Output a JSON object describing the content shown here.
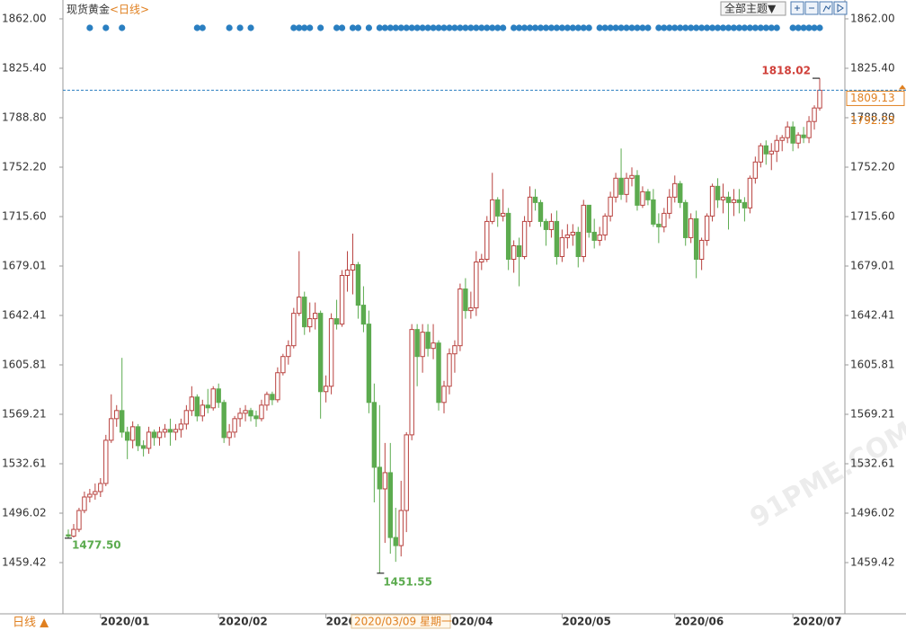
{
  "chart_data": {
    "type": "candlestick",
    "title": "现货黄金",
    "period": "<日线>",
    "theme_button": "全部主题▼",
    "period_switch": "日线 ▲",
    "cursor_date": "2020/03/09 星期一",
    "watermark": "91PME.COM",
    "ylim": [
      1421.5,
      1869.3
    ],
    "yticks": [
      {
        "value": 1862,
        "label": "1862.00"
      },
      {
        "value": 1825.4,
        "label": "1825.40"
      },
      {
        "value": 1788.8,
        "label": "1788.80"
      },
      {
        "value": 1752.2,
        "label": "1752.20"
      },
      {
        "value": 1715.6,
        "label": "1715.60"
      },
      1679.01,
      1642.41,
      1605.81,
      1569.21,
      1532.61,
      1496.02,
      1459.42
    ],
    "grid": false,
    "up_color": "#b8423f",
    "down_color": "#5cab4f",
    "signal_color": "#2a7fc1",
    "ref_price": 1792.23,
    "low_label": "1477.50",
    "categories": [
      null,
      null,
      null,
      null,
      null,
      null,
      "2020/01",
      null,
      null,
      null,
      null,
      null,
      null,
      null,
      null,
      null,
      null,
      null,
      null,
      null,
      null,
      null,
      null,
      null,
      null,
      null,
      null,
      null,
      "2020/02",
      null,
      null,
      null,
      null,
      null,
      null,
      null,
      null,
      null,
      null,
      null,
      null,
      null,
      null,
      null,
      null,
      null,
      null,
      null,
      "2020/03",
      null,
      null,
      null,
      null,
      null,
      null,
      null,
      null,
      null,
      null,
      null,
      null,
      null,
      null,
      null,
      null,
      null,
      null,
      null,
      null,
      null,
      "2020/04",
      null,
      null,
      null,
      null,
      null,
      null,
      null,
      null,
      null,
      null,
      null,
      null,
      null,
      null,
      null,
      null,
      null,
      null,
      null,
      null,
      null,
      "2020/05",
      null,
      null,
      null,
      null,
      null,
      null,
      null,
      null,
      null,
      null,
      null,
      null,
      null,
      null,
      null,
      null,
      null,
      null,
      null,
      null,
      "2020/06",
      null,
      null,
      null,
      null,
      null,
      null,
      null,
      null,
      null,
      null,
      null,
      null,
      null,
      null,
      null,
      null,
      null,
      null,
      null,
      null,
      null,
      "2020/07",
      null,
      null,
      null,
      null,
      null
    ],
    "ohlc": [
      [
        1480,
        1484,
        1477.5,
        1479
      ],
      [
        1479,
        1488,
        1478,
        1484
      ],
      [
        1484,
        1500,
        1482,
        1498
      ],
      [
        1498,
        1512,
        1496,
        1508
      ],
      [
        1508,
        1514,
        1504,
        1510
      ],
      [
        1510,
        1518,
        1506,
        1512
      ],
      [
        1512,
        1522,
        1508,
        1518
      ],
      [
        1518,
        1554,
        1516,
        1550
      ],
      [
        1550,
        1584,
        1548,
        1566
      ],
      [
        1566,
        1576,
        1560,
        1572
      ],
      [
        1572,
        1611,
        1552,
        1556
      ],
      [
        1556,
        1560,
        1536,
        1550
      ],
      [
        1550,
        1564,
        1544,
        1560
      ],
      [
        1560,
        1562,
        1542,
        1546
      ],
      [
        1546,
        1550,
        1538,
        1544
      ],
      [
        1544,
        1560,
        1540,
        1556
      ],
      [
        1556,
        1558,
        1546,
        1552
      ],
      [
        1552,
        1560,
        1546,
        1556
      ],
      [
        1556,
        1562,
        1552,
        1558
      ],
      [
        1558,
        1566,
        1546,
        1556
      ],
      [
        1556,
        1562,
        1550,
        1558
      ],
      [
        1558,
        1566,
        1552,
        1562
      ],
      [
        1562,
        1576,
        1558,
        1572
      ],
      [
        1572,
        1590,
        1568,
        1582
      ],
      [
        1582,
        1584,
        1564,
        1568
      ],
      [
        1568,
        1580,
        1564,
        1576
      ],
      [
        1576,
        1588,
        1570,
        1574
      ],
      [
        1574,
        1590,
        1572,
        1588
      ],
      [
        1588,
        1592,
        1574,
        1578
      ],
      [
        1578,
        1580,
        1548,
        1552
      ],
      [
        1552,
        1562,
        1546,
        1556
      ],
      [
        1556,
        1568,
        1552,
        1566
      ],
      [
        1566,
        1574,
        1560,
        1570
      ],
      [
        1570,
        1576,
        1564,
        1572
      ],
      [
        1572,
        1574,
        1564,
        1568
      ],
      [
        1568,
        1572,
        1560,
        1566
      ],
      [
        1566,
        1580,
        1564,
        1576
      ],
      [
        1576,
        1586,
        1572,
        1584
      ],
      [
        1584,
        1586,
        1576,
        1580
      ],
      [
        1580,
        1604,
        1578,
        1600
      ],
      [
        1600,
        1614,
        1598,
        1612
      ],
      [
        1612,
        1624,
        1606,
        1620
      ],
      [
        1620,
        1648,
        1618,
        1644
      ],
      [
        1644,
        1690,
        1642,
        1656
      ],
      [
        1656,
        1660,
        1628,
        1634
      ],
      [
        1634,
        1652,
        1630,
        1640
      ],
      [
        1640,
        1652,
        1632,
        1644
      ],
      [
        1644,
        1646,
        1566,
        1586
      ],
      [
        1586,
        1598,
        1578,
        1590
      ],
      [
        1590,
        1644,
        1584,
        1640
      ],
      [
        1640,
        1654,
        1632,
        1636
      ],
      [
        1636,
        1676,
        1634,
        1672
      ],
      [
        1672,
        1690,
        1660,
        1676
      ],
      [
        1676,
        1703,
        1658,
        1680
      ],
      [
        1680,
        1682,
        1640,
        1650
      ],
      [
        1650,
        1664,
        1630,
        1636
      ],
      [
        1636,
        1646,
        1570,
        1578
      ],
      [
        1578,
        1592,
        1504,
        1530
      ],
      [
        1530,
        1576,
        1451.55,
        1514
      ],
      [
        1514,
        1548,
        1474,
        1526
      ],
      [
        1526,
        1548,
        1466,
        1478
      ],
      [
        1478,
        1500,
        1460,
        1472
      ],
      [
        1472,
        1520,
        1464,
        1498
      ],
      [
        1498,
        1556,
        1482,
        1554
      ],
      [
        1554,
        1636,
        1550,
        1632
      ],
      [
        1632,
        1636,
        1590,
        1612
      ],
      [
        1612,
        1636,
        1600,
        1630
      ],
      [
        1630,
        1636,
        1612,
        1618
      ],
      [
        1618,
        1636,
        1610,
        1622
      ],
      [
        1622,
        1624,
        1572,
        1578
      ],
      [
        1578,
        1594,
        1570,
        1590
      ],
      [
        1590,
        1618,
        1584,
        1614
      ],
      [
        1614,
        1624,
        1600,
        1620
      ],
      [
        1620,
        1666,
        1616,
        1662
      ],
      [
        1662,
        1670,
        1640,
        1646
      ],
      [
        1646,
        1660,
        1640,
        1648
      ],
      [
        1648,
        1690,
        1642,
        1682
      ],
      [
        1682,
        1688,
        1676,
        1684
      ],
      [
        1684,
        1716,
        1682,
        1712
      ],
      [
        1712,
        1748,
        1710,
        1728
      ],
      [
        1728,
        1730,
        1708,
        1716
      ],
      [
        1716,
        1736,
        1712,
        1718
      ],
      [
        1718,
        1722,
        1676,
        1684
      ],
      [
        1684,
        1698,
        1674,
        1694
      ],
      [
        1694,
        1700,
        1664,
        1686
      ],
      [
        1686,
        1716,
        1684,
        1712
      ],
      [
        1712,
        1738,
        1708,
        1730
      ],
      [
        1730,
        1736,
        1720,
        1726
      ],
      [
        1726,
        1728,
        1708,
        1712
      ],
      [
        1712,
        1714,
        1694,
        1706
      ],
      [
        1706,
        1718,
        1700,
        1712
      ],
      [
        1712,
        1720,
        1680,
        1686
      ],
      [
        1686,
        1706,
        1682,
        1700
      ],
      [
        1700,
        1710,
        1692,
        1702
      ],
      [
        1702,
        1710,
        1694,
        1704
      ],
      [
        1704,
        1708,
        1678,
        1686
      ],
      [
        1686,
        1728,
        1682,
        1724
      ],
      [
        1724,
        1724,
        1700,
        1704
      ],
      [
        1704,
        1714,
        1692,
        1698
      ],
      [
        1698,
        1708,
        1694,
        1702
      ],
      [
        1702,
        1718,
        1698,
        1716
      ],
      [
        1716,
        1734,
        1712,
        1730
      ],
      [
        1730,
        1748,
        1726,
        1744
      ],
      [
        1744,
        1766,
        1728,
        1732
      ],
      [
        1732,
        1748,
        1726,
        1744
      ],
      [
        1744,
        1752,
        1738,
        1746
      ],
      [
        1746,
        1750,
        1720,
        1724
      ],
      [
        1724,
        1738,
        1722,
        1734
      ],
      [
        1734,
        1736,
        1724,
        1728
      ],
      [
        1728,
        1736,
        1708,
        1710
      ],
      [
        1710,
        1718,
        1696,
        1708
      ],
      [
        1708,
        1722,
        1704,
        1718
      ],
      [
        1718,
        1736,
        1714,
        1730
      ],
      [
        1730,
        1746,
        1726,
        1740
      ],
      [
        1740,
        1742,
        1722,
        1726
      ],
      [
        1726,
        1728,
        1694,
        1700
      ],
      [
        1700,
        1718,
        1696,
        1714
      ],
      [
        1714,
        1720,
        1670,
        1684
      ],
      [
        1684,
        1700,
        1676,
        1698
      ],
      [
        1698,
        1718,
        1694,
        1716
      ],
      [
        1716,
        1740,
        1712,
        1738
      ],
      [
        1738,
        1744,
        1722,
        1728
      ],
      [
        1728,
        1740,
        1718,
        1730
      ],
      [
        1730,
        1734,
        1706,
        1726
      ],
      [
        1726,
        1736,
        1716,
        1728
      ],
      [
        1728,
        1736,
        1718,
        1726
      ],
      [
        1726,
        1730,
        1712,
        1722
      ],
      [
        1722,
        1746,
        1718,
        1744
      ],
      [
        1744,
        1760,
        1740,
        1756
      ],
      [
        1756,
        1770,
        1752,
        1768
      ],
      [
        1768,
        1772,
        1754,
        1762
      ],
      [
        1762,
        1770,
        1750,
        1764
      ],
      [
        1764,
        1776,
        1756,
        1772
      ],
      [
        1772,
        1776,
        1764,
        1774
      ],
      [
        1774,
        1786,
        1770,
        1782
      ],
      [
        1782,
        1786,
        1764,
        1770
      ],
      [
        1770,
        1778,
        1766,
        1776
      ],
      [
        1776,
        1782,
        1770,
        1774
      ],
      [
        1774,
        1790,
        1770,
        1786
      ],
      [
        1786,
        1798,
        1780,
        1796
      ],
      [
        1796,
        1818.02,
        1794,
        1809.13
      ]
    ],
    "signal_ranges": [
      [
        4,
        4
      ],
      [
        7,
        7
      ],
      [
        10,
        10
      ],
      [
        24,
        25
      ],
      [
        30,
        30
      ],
      [
        32,
        32
      ],
      [
        34,
        34
      ],
      [
        42,
        45
      ],
      [
        47,
        47
      ],
      [
        50,
        51
      ],
      [
        53,
        54
      ],
      [
        56,
        56
      ],
      [
        58,
        81
      ],
      [
        83,
        97
      ],
      [
        99,
        108
      ],
      [
        110,
        132
      ],
      [
        135,
        140
      ]
    ]
  }
}
